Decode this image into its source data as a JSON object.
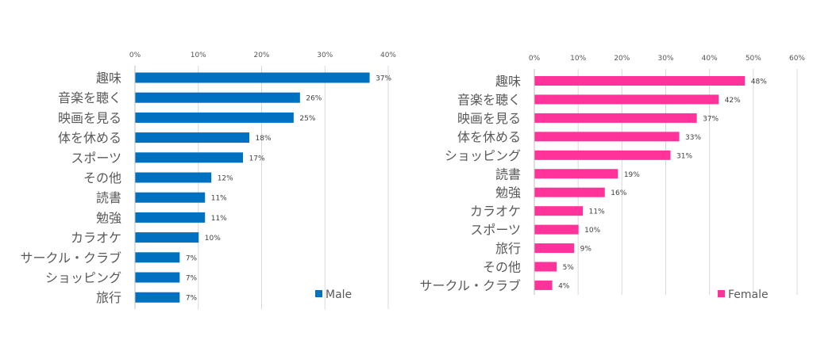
{
  "chart_data": [
    {
      "type": "bar",
      "orientation": "horizontal",
      "categories": [
        "趣味",
        "音楽を聴く",
        "映画を見る",
        "体を休める",
        "スポーツ",
        "その他",
        "読書",
        "勉強",
        "カラオケ",
        "サークル・クラブ",
        "ショッピング",
        "旅行"
      ],
      "series": [
        {
          "name": "Male",
          "values": [
            37,
            26,
            25,
            18,
            17,
            12,
            11,
            11,
            10,
            7,
            7,
            7
          ],
          "color": "#0070c0"
        }
      ],
      "value_labels": [
        "37%",
        "26%",
        "25%",
        "18%",
        "17%",
        "12%",
        "11%",
        "11%",
        "10%",
        "7%",
        "7%",
        "7%"
      ],
      "xlim": [
        0,
        40
      ],
      "ticks": [
        0,
        10,
        20,
        30,
        40
      ],
      "tick_labels": [
        "0%",
        "10%",
        "20%",
        "30%",
        "40%"
      ],
      "axis_position": "top",
      "grid": true,
      "legend": "bottom-right"
    },
    {
      "type": "bar",
      "orientation": "horizontal",
      "categories": [
        "趣味",
        "音楽を聴く",
        "映画を見る",
        "体を休める",
        "ショッピング",
        "読書",
        "勉強",
        "カラオケ",
        "スポーツ",
        "旅行",
        "その他",
        "サークル・クラブ"
      ],
      "series": [
        {
          "name": "Female",
          "values": [
            48,
            42,
            37,
            33,
            31,
            19,
            16,
            11,
            10,
            9,
            5,
            4
          ],
          "color": "#ff3399"
        }
      ],
      "value_labels": [
        "48%",
        "42%",
        "37%",
        "33%",
        "31%",
        "19%",
        "16%",
        "11%",
        "10%",
        "9%",
        "5%",
        "4%"
      ],
      "xlim": [
        0,
        60
      ],
      "ticks": [
        0,
        10,
        20,
        30,
        40,
        50,
        60
      ],
      "tick_labels": [
        "0%",
        "10%",
        "20%",
        "30%",
        "40%",
        "50%",
        "60%"
      ],
      "axis_position": "top",
      "grid": true,
      "legend": "bottom-right"
    }
  ]
}
